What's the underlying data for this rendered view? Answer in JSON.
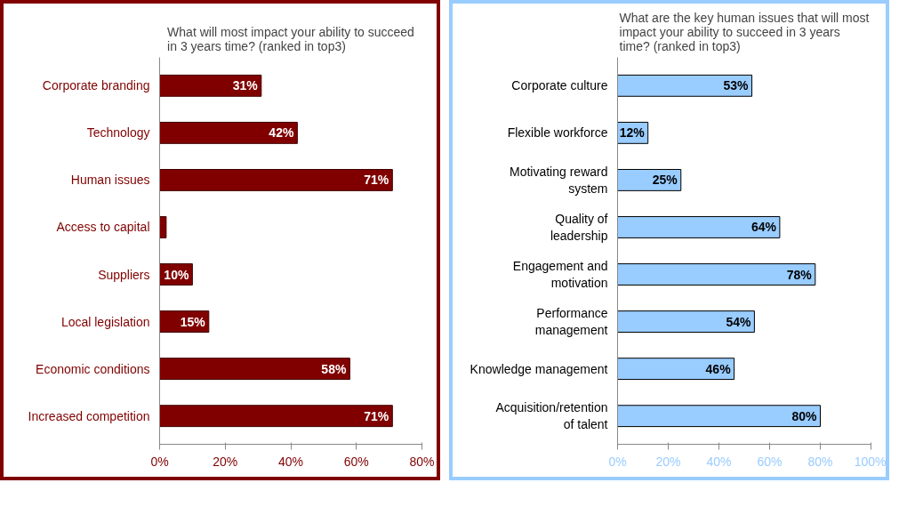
{
  "chart_data": [
    {
      "type": "bar",
      "orientation": "horizontal",
      "title": "What will most impact your ability to succeed in 3 years time? (ranked in top3)",
      "categories": [
        "Corporate branding",
        "Technology",
        "Human issues",
        "Access to capital",
        "Suppliers",
        "Local legislation",
        "Economic conditions",
        "Increased competition"
      ],
      "values": [
        31,
        42,
        71,
        2,
        10,
        15,
        58,
        71
      ],
      "value_labels": [
        "31%",
        "42%",
        "71%",
        null,
        "10%",
        "15%",
        "58%",
        "71%"
      ],
      "color": "#800000",
      "xlim": [
        0,
        80
      ],
      "grid": false,
      "xticks": [
        {
          "value": 0,
          "label": "0%"
        },
        {
          "value": 20,
          "label": "20%"
        },
        {
          "value": 40,
          "label": "40%"
        },
        {
          "value": 60,
          "label": "60%"
        },
        {
          "value": 80,
          "label": "80%"
        }
      ]
    },
    {
      "type": "bar",
      "orientation": "horizontal",
      "title": "What are the key human issues that will most impact your ability to succeed in 3 years time? (ranked in top3)",
      "categories": [
        "Corporate culture",
        "Flexible workforce",
        "Motivating reward system",
        "Quality of leadership",
        "Engagement and motivation",
        "Performance management",
        "Knowledge management",
        "Acquisition/retention of talent"
      ],
      "values": [
        53,
        12,
        25,
        64,
        78,
        54,
        46,
        80
      ],
      "value_labels": [
        "53%",
        "12%",
        "25%",
        "64%",
        "78%",
        "54%",
        "46%",
        "80%"
      ],
      "color": "#99ccff",
      "xlim": [
        0,
        100
      ],
      "xticks": [
        {
          "value": 0,
          "label": "0%"
        },
        {
          "value": 20,
          "label": "20%"
        },
        {
          "value": 40,
          "label": "40%"
        },
        {
          "value": 60,
          "label": "60%"
        },
        {
          "value": 80,
          "label": "80%"
        },
        {
          "value": 100,
          "label": "100%"
        }
      ],
      "grid": false
    }
  ]
}
